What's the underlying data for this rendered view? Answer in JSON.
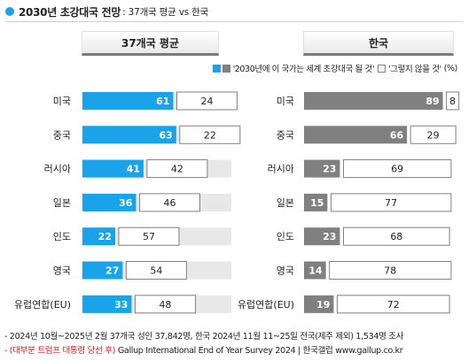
{
  "title": {
    "main": "2030년 초강대국 전망",
    "sub": ": 37개국 평균 vs 한국"
  },
  "panels": {
    "left": "37개국 평균",
    "right": "한국"
  },
  "legend": {
    "yes": "'2030년에 이 국가는 세계 초강대국 될 것'",
    "no": "'그렇지 않을 것'",
    "unit": "(%)"
  },
  "colors": {
    "left_bar": "#1aa3e8",
    "right_bar": "#808080",
    "track": "#e8e8e8",
    "border": "#808080"
  },
  "chart_data": {
    "type": "bar",
    "orientation": "horizontal",
    "categories": [
      "미국",
      "중국",
      "러시아",
      "일본",
      "인도",
      "영국",
      "유럽연합(EU)"
    ],
    "panels": [
      {
        "name": "37개국 평균",
        "series": [
          {
            "name": "'2030년에 이 국가는 세계 초강대국 될 것'",
            "values": [
              61,
              63,
              41,
              36,
              22,
              27,
              33
            ]
          },
          {
            "name": "'그렇지 않을 것'",
            "values": [
              24,
              22,
              42,
              46,
              57,
              54,
              48
            ]
          }
        ]
      },
      {
        "name": "한국",
        "series": [
          {
            "name": "'2030년에 이 국가는 세계 초강대국 될 것'",
            "values": [
              89,
              66,
              23,
              15,
              23,
              14,
              19
            ]
          },
          {
            "name": "'그렇지 않을 것'",
            "values": [
              8,
              29,
              69,
              77,
              68,
              78,
              72
            ]
          }
        ]
      }
    ],
    "xlim": [
      0,
      100
    ],
    "unit": "%"
  },
  "footnotes": {
    "line1": "- 2024년 10월~2025년 2월 37개국 성인 37,842명, 한국 2024년 11월 11~25일 전국(제주 제외) 1,534명 조사",
    "line2_red": "- (대부분 트럼프 대통령 당선 후)",
    "line2_rest": " Gallup International End of Year Survey 2024 | 한국갤럽 www.gallup.co.kr"
  }
}
